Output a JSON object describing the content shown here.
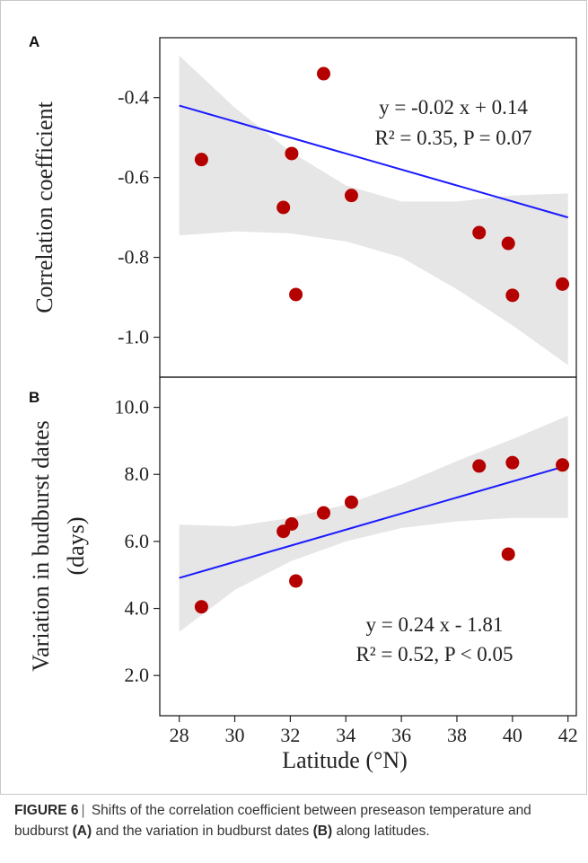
{
  "chart_data": [
    {
      "panel": "A",
      "type": "scatter",
      "ylabel": "Correlation coefficient",
      "xlim": [
        27.3,
        42.3
      ],
      "ylim": [
        -1.1,
        -0.25
      ],
      "xticks": [
        28,
        30,
        32,
        34,
        36,
        38,
        40,
        42
      ],
      "yticks": [
        "-1.0",
        "-0.8",
        "-0.6",
        "-0.4"
      ],
      "points": [
        {
          "x": 28.8,
          "y": -0.555
        },
        {
          "x": 31.75,
          "y": -0.675
        },
        {
          "x": 32.05,
          "y": -0.54
        },
        {
          "x": 32.2,
          "y": -0.893
        },
        {
          "x": 33.2,
          "y": -0.34
        },
        {
          "x": 34.2,
          "y": -0.645
        },
        {
          "x": 38.8,
          "y": -0.738
        },
        {
          "x": 39.85,
          "y": -0.765
        },
        {
          "x": 40.0,
          "y": -0.895
        },
        {
          "x": 41.8,
          "y": -0.867
        }
      ],
      "regression": {
        "slope": -0.02,
        "intercept": 0.14,
        "x_range": [
          28,
          42
        ]
      },
      "confidence_band": [
        {
          "x": 28,
          "lower": -0.745,
          "upper": -0.295
        },
        {
          "x": 30,
          "lower": -0.735,
          "upper": -0.425
        },
        {
          "x": 32,
          "lower": -0.74,
          "upper": -0.535
        },
        {
          "x": 34,
          "lower": -0.76,
          "upper": -0.62
        },
        {
          "x": 36,
          "lower": -0.8,
          "upper": -0.66
        },
        {
          "x": 38,
          "lower": -0.88,
          "upper": -0.66
        },
        {
          "x": 40,
          "lower": -0.97,
          "upper": -0.645
        },
        {
          "x": 42,
          "lower": -1.07,
          "upper": -0.64
        }
      ],
      "equation_line1": "y = -0.02 x + 0.14",
      "equation_line2": "R² = 0.35, P = 0.07",
      "colors": {
        "point": "#b50000",
        "line": "#1a1aff",
        "band": "#e6e6e6"
      }
    },
    {
      "panel": "B",
      "type": "scatter",
      "ylabel": "Variation in budburst dates",
      "ylabel_units": "(days)",
      "xlabel": "Latitude (°N)",
      "xlim": [
        27.3,
        42.3
      ],
      "ylim": [
        0.8,
        10.9
      ],
      "xticks": [
        28,
        30,
        32,
        34,
        36,
        38,
        40,
        42
      ],
      "yticks": [
        "2.0",
        "4.0",
        "6.0",
        "8.0",
        "10.0"
      ],
      "points": [
        {
          "x": 28.8,
          "y": 4.05
        },
        {
          "x": 31.75,
          "y": 6.3
        },
        {
          "x": 32.05,
          "y": 6.52
        },
        {
          "x": 32.2,
          "y": 4.82
        },
        {
          "x": 33.2,
          "y": 6.85
        },
        {
          "x": 34.2,
          "y": 7.17
        },
        {
          "x": 38.8,
          "y": 8.25
        },
        {
          "x": 39.85,
          "y": 5.62
        },
        {
          "x": 40.0,
          "y": 8.35
        },
        {
          "x": 41.8,
          "y": 8.28
        }
      ],
      "regression": {
        "slope": 0.24,
        "intercept": -1.81,
        "x_range": [
          28,
          42
        ]
      },
      "confidence_band": [
        {
          "x": 28,
          "lower": 3.3,
          "upper": 6.5
        },
        {
          "x": 30,
          "lower": 4.55,
          "upper": 6.45
        },
        {
          "x": 32,
          "lower": 5.4,
          "upper": 6.7
        },
        {
          "x": 34,
          "lower": 6.0,
          "upper": 7.1
        },
        {
          "x": 36,
          "lower": 6.4,
          "upper": 7.7
        },
        {
          "x": 38,
          "lower": 6.6,
          "upper": 8.4
        },
        {
          "x": 40,
          "lower": 6.7,
          "upper": 9.05
        },
        {
          "x": 42,
          "lower": 6.7,
          "upper": 9.75
        }
      ],
      "equation_line1": "y = 0.24 x - 1.81",
      "equation_line2": "R² = 0.52, P < 0.05",
      "colors": {
        "point": "#b50000",
        "line": "#1a1aff",
        "band": "#e6e6e6"
      }
    }
  ],
  "caption": {
    "label": "FIGURE 6",
    "separator": "|",
    "text_1": " Shifts of the correlation coefficient between preseason temperature and budburst ",
    "ref_a": "(A)",
    "text_2": " and the variation in budburst dates ",
    "ref_b": "(B)",
    "text_3": " along latitudes."
  }
}
